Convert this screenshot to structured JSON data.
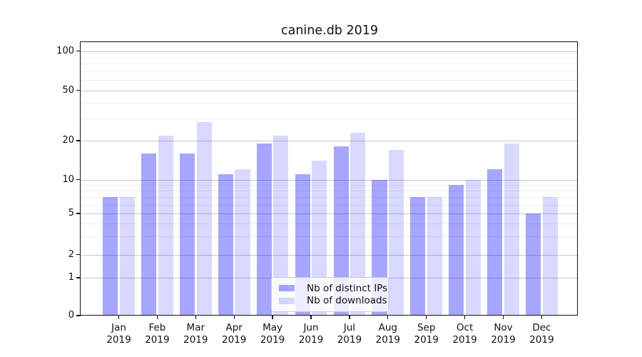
{
  "chart_data": {
    "type": "bar",
    "title": "canine.db 2019",
    "categories": [
      {
        "month": "Jan",
        "year": "2019"
      },
      {
        "month": "Feb",
        "year": "2019"
      },
      {
        "month": "Mar",
        "year": "2019"
      },
      {
        "month": "Apr",
        "year": "2019"
      },
      {
        "month": "May",
        "year": "2019"
      },
      {
        "month": "Jun",
        "year": "2019"
      },
      {
        "month": "Jul",
        "year": "2019"
      },
      {
        "month": "Aug",
        "year": "2019"
      },
      {
        "month": "Sep",
        "year": "2019"
      },
      {
        "month": "Oct",
        "year": "2019"
      },
      {
        "month": "Nov",
        "year": "2019"
      },
      {
        "month": "Dec",
        "year": "2019"
      }
    ],
    "series": [
      {
        "name": "Nb of distinct IPs",
        "color": "rgba(0,0,255,0.35)",
        "values": [
          7,
          16,
          16,
          11,
          19,
          11,
          18,
          10,
          7,
          9,
          12,
          5
        ]
      },
      {
        "name": "Nb of downloads",
        "color": "rgba(0,0,255,0.15)",
        "values": [
          7,
          22,
          28,
          12,
          22,
          14,
          23,
          17,
          7,
          10,
          19,
          7
        ]
      }
    ],
    "yaxis": {
      "scale": "symlog",
      "ticks": [
        0,
        1,
        2,
        5,
        10,
        20,
        50,
        100
      ],
      "minor_ticks": [
        3,
        4,
        6,
        7,
        8,
        9,
        30,
        40,
        60,
        70,
        80,
        90
      ],
      "range": [
        0,
        100
      ]
    },
    "grid": true,
    "legend_position": "lower center"
  }
}
